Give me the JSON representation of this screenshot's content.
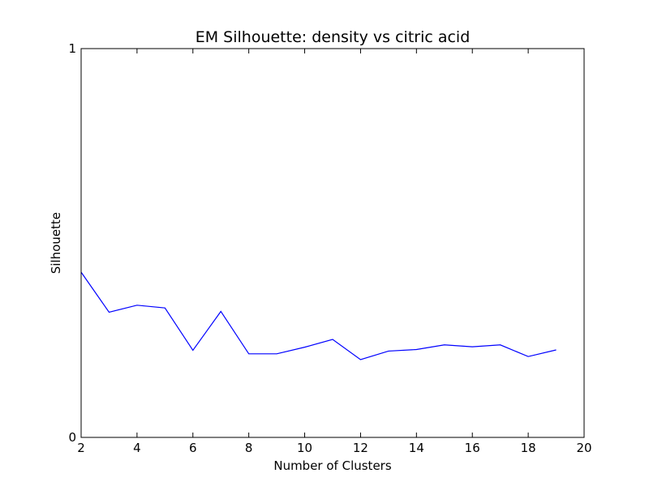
{
  "chart_data": {
    "type": "line",
    "title": "EM Silhouette: density vs citric acid",
    "xlabel": "Number of Clusters",
    "ylabel": "Silhouette",
    "xlim": [
      2,
      20
    ],
    "ylim": [
      0,
      1
    ],
    "xticks": [
      2,
      4,
      6,
      8,
      10,
      12,
      14,
      16,
      18,
      20
    ],
    "yticks": [
      0,
      1
    ],
    "grid": false,
    "legend": "none",
    "series": [
      {
        "color": "#0000ff",
        "x": [
          2,
          3,
          4,
          5,
          6,
          7,
          8,
          9,
          10,
          11,
          12,
          13,
          14,
          15,
          16,
          17,
          18,
          19
        ],
        "y": [
          0.425,
          0.322,
          0.34,
          0.333,
          0.224,
          0.324,
          0.215,
          0.215,
          0.232,
          0.252,
          0.2,
          0.222,
          0.226,
          0.238,
          0.233,
          0.238,
          0.208,
          0.225
        ]
      }
    ]
  }
}
